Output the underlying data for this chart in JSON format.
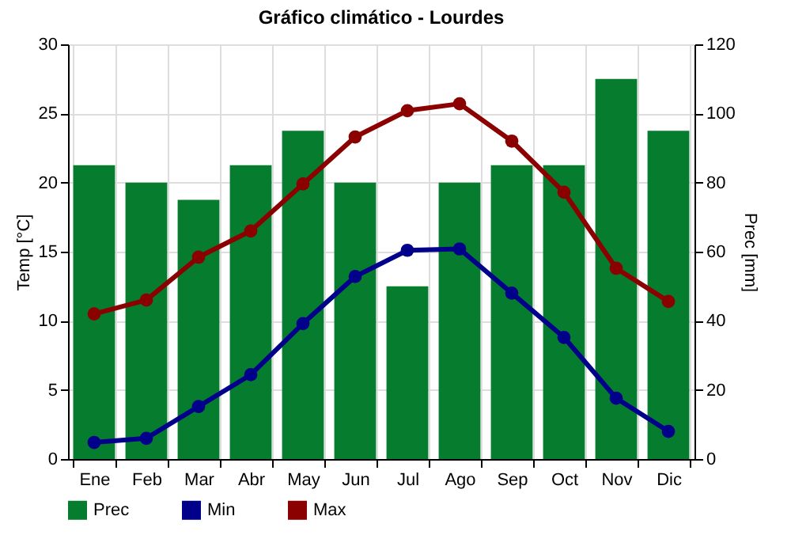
{
  "chart_data": {
    "type": "bar",
    "title": "Gráfico climático - Lourdes",
    "ylabel": "Temp [°C]",
    "y2label": "Prec [mm]",
    "categories": [
      "Ene",
      "Feb",
      "Mar",
      "Abr",
      "May",
      "Jun",
      "Jul",
      "Ago",
      "Sep",
      "Oct",
      "Nov",
      "Dic"
    ],
    "series": [
      {
        "name": "Prec",
        "axis": "y2",
        "color": "#067c2f",
        "values": [
          85,
          80,
          75,
          85,
          95,
          80,
          50,
          80,
          85,
          85,
          110,
          95
        ]
      },
      {
        "name": "Min",
        "type": "line",
        "color": "#00008b",
        "values": [
          1.2,
          1.5,
          3.8,
          6.1,
          9.8,
          13.2,
          15.1,
          15.2,
          12.0,
          8.8,
          4.4,
          2.0
        ]
      },
      {
        "name": "Max",
        "type": "line",
        "color": "#8b0000",
        "values": [
          10.5,
          11.5,
          14.6,
          16.5,
          19.9,
          23.3,
          25.2,
          25.7,
          23.0,
          19.3,
          13.8,
          11.4
        ]
      }
    ],
    "ylim": [
      0,
      30
    ],
    "yticks": [
      0,
      5,
      10,
      15,
      20,
      25,
      30
    ],
    "y2lim": [
      0,
      120
    ],
    "y2ticks": [
      0,
      20,
      40,
      60,
      80,
      100,
      120
    ],
    "grid": true,
    "legend": "bottom left",
    "marker": "circle",
    "line_style": "solid"
  }
}
